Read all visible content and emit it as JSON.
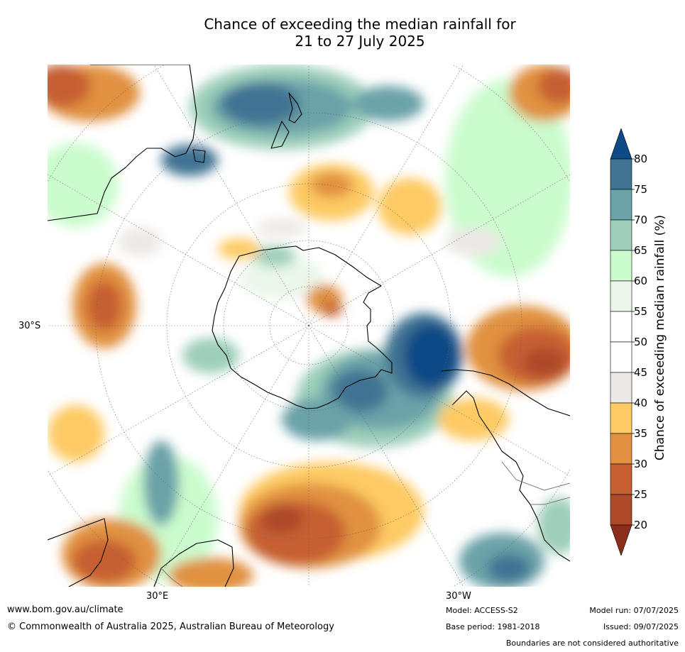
{
  "title": {
    "line1": "Chance of exceeding the median rainfall for",
    "line2": "21 to 27 July 2025"
  },
  "map": {
    "projection": "south polar stereographic",
    "lat_label_left": "30°S",
    "lon_label_left": "30°E",
    "lon_label_right": "30°W",
    "highlights": [
      {
        "region": "South America / southern Atlantic",
        "category": "wet",
        "range": "70-80+"
      },
      {
        "region": "New Zealand region",
        "category": "wet",
        "range": "65-80"
      },
      {
        "region": "Southern Africa and Indian Ocean",
        "category": "dry",
        "range": "20-40"
      },
      {
        "region": "Southern Australia",
        "category": "dry",
        "range": "25-40"
      }
    ]
  },
  "colorbar": {
    "title": "Chance of exceeding median rainfall (%)",
    "ticks": [
      "80",
      "75",
      "70",
      "65",
      "60",
      "55",
      "50",
      "45",
      "40",
      "35",
      "30",
      "25",
      "20"
    ],
    "bins": [
      {
        "range": "> 80",
        "color": "#0d4a86"
      },
      {
        "range": "75-80",
        "color": "#417393"
      },
      {
        "range": "70-75",
        "color": "#6aa2a8"
      },
      {
        "range": "65-70",
        "color": "#9dcfba"
      },
      {
        "range": "60-65",
        "color": "#cbfccd"
      },
      {
        "range": "55-60",
        "color": "#eaf7ea"
      },
      {
        "range": "50-55",
        "color": "#ffffff"
      },
      {
        "range": "45-50",
        "color": "#ffffff"
      },
      {
        "range": "40-45",
        "color": "#ece8e5"
      },
      {
        "range": "35-40",
        "color": "#fdca64"
      },
      {
        "range": "30-35",
        "color": "#e1913f"
      },
      {
        "range": "25-30",
        "color": "#c65f31"
      },
      {
        "range": "20-25",
        "color": "#ad4829"
      },
      {
        "range": "< 20",
        "color": "#8b2e1b"
      }
    ]
  },
  "footer": {
    "website": "www.bom.gov.au/climate",
    "copyright": "© Commonwealth of Australia 2025, Australian Bureau of Meteorology",
    "model": "Model: ACCESS-S2",
    "base_period": "Base period: 1981-2018",
    "model_run": "Model run: 07/07/2025",
    "issued": "Issued: 09/07/2025",
    "disclaimer": "Boundaries are not considered authoritative"
  }
}
